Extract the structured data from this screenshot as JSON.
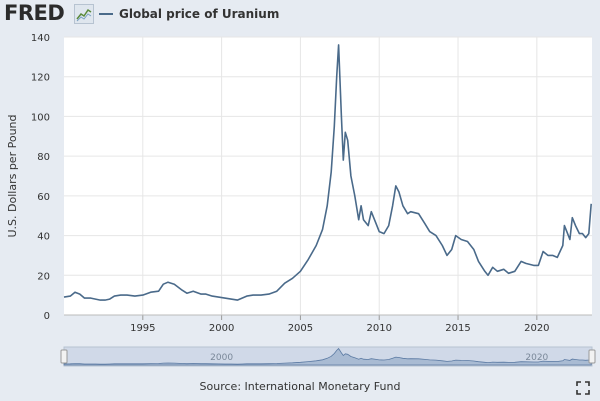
{
  "header": {
    "logo_text": "FRED",
    "logo_icon": "line-chart-icon"
  },
  "footer": {
    "source_text": "Source: International Monetary Fund",
    "fullscreen_icon": "expand-icon"
  },
  "colors": {
    "line": "#4a6a8a",
    "plot_bg": "#ffffff",
    "page_bg": "#e6ebf2",
    "grid": "#e6e6e6",
    "navigator_fill": "#d0d9e8"
  },
  "chart_data": {
    "type": "line",
    "title": "",
    "xlabel": "",
    "ylabel": "U.S. Dollars per Pound",
    "ylim": [
      0,
      140
    ],
    "yticks": [
      0,
      20,
      40,
      60,
      80,
      100,
      120,
      140
    ],
    "xlim": [
      1990,
      2023.5
    ],
    "xticks": [
      1995,
      2000,
      2005,
      2010,
      2015,
      2020
    ],
    "grid": true,
    "legend": "top-left",
    "navigator_ticks": [
      "2000",
      "2020"
    ],
    "series": [
      {
        "name": "Global price of Uranium",
        "points": [
          [
            1990.0,
            9.0
          ],
          [
            1990.4,
            9.5
          ],
          [
            1990.7,
            11.5
          ],
          [
            1991.0,
            10.5
          ],
          [
            1991.3,
            8.5
          ],
          [
            1991.7,
            8.5
          ],
          [
            1992.0,
            8.0
          ],
          [
            1992.3,
            7.5
          ],
          [
            1992.6,
            7.5
          ],
          [
            1992.9,
            8.0
          ],
          [
            1993.2,
            9.5
          ],
          [
            1993.6,
            10.0
          ],
          [
            1994.0,
            10.0
          ],
          [
            1994.5,
            9.5
          ],
          [
            1995.0,
            10.0
          ],
          [
            1995.5,
            11.5
          ],
          [
            1996.0,
            12.0
          ],
          [
            1996.3,
            15.5
          ],
          [
            1996.6,
            16.5
          ],
          [
            1997.0,
            15.5
          ],
          [
            1997.5,
            12.5
          ],
          [
            1997.8,
            11.0
          ],
          [
            1998.2,
            12.0
          ],
          [
            1998.7,
            10.5
          ],
          [
            1999.0,
            10.5
          ],
          [
            1999.4,
            9.5
          ],
          [
            1999.8,
            9.0
          ],
          [
            2000.2,
            8.5
          ],
          [
            2000.6,
            8.0
          ],
          [
            2001.0,
            7.5
          ],
          [
            2001.3,
            8.5
          ],
          [
            2001.6,
            9.5
          ],
          [
            2002.0,
            10.0
          ],
          [
            2002.5,
            10.0
          ],
          [
            2003.0,
            10.5
          ],
          [
            2003.5,
            12.0
          ],
          [
            2004.0,
            16.0
          ],
          [
            2004.5,
            18.5
          ],
          [
            2005.0,
            22.0
          ],
          [
            2005.5,
            28.0
          ],
          [
            2006.0,
            35.0
          ],
          [
            2006.4,
            43.0
          ],
          [
            2006.7,
            55.0
          ],
          [
            2006.95,
            72.0
          ],
          [
            2007.15,
            95.0
          ],
          [
            2007.3,
            120.0
          ],
          [
            2007.42,
            136.0
          ],
          [
            2007.6,
            100.0
          ],
          [
            2007.72,
            78.0
          ],
          [
            2007.85,
            92.0
          ],
          [
            2008.0,
            88.0
          ],
          [
            2008.2,
            70.0
          ],
          [
            2008.45,
            60.0
          ],
          [
            2008.7,
            48.0
          ],
          [
            2008.85,
            55.0
          ],
          [
            2009.0,
            48.0
          ],
          [
            2009.3,
            45.0
          ],
          [
            2009.5,
            52.0
          ],
          [
            2009.8,
            46.0
          ],
          [
            2010.0,
            42.0
          ],
          [
            2010.3,
            41.0
          ],
          [
            2010.6,
            45.0
          ],
          [
            2010.85,
            55.0
          ],
          [
            2011.05,
            65.0
          ],
          [
            2011.25,
            62.0
          ],
          [
            2011.5,
            55.0
          ],
          [
            2011.8,
            51.0
          ],
          [
            2012.0,
            52.0
          ],
          [
            2012.5,
            51.0
          ],
          [
            2012.9,
            46.0
          ],
          [
            2013.2,
            42.0
          ],
          [
            2013.6,
            40.0
          ],
          [
            2014.0,
            35.0
          ],
          [
            2014.3,
            30.0
          ],
          [
            2014.6,
            33.0
          ],
          [
            2014.85,
            40.0
          ],
          [
            2015.2,
            38.0
          ],
          [
            2015.6,
            37.0
          ],
          [
            2016.0,
            33.0
          ],
          [
            2016.3,
            27.0
          ],
          [
            2016.7,
            22.0
          ],
          [
            2016.9,
            20.0
          ],
          [
            2017.2,
            24.0
          ],
          [
            2017.5,
            22.0
          ],
          [
            2017.9,
            23.0
          ],
          [
            2018.2,
            21.0
          ],
          [
            2018.6,
            22.0
          ],
          [
            2019.0,
            27.0
          ],
          [
            2019.3,
            26.0
          ],
          [
            2019.8,
            25.0
          ],
          [
            2020.1,
            25.0
          ],
          [
            2020.4,
            32.0
          ],
          [
            2020.7,
            30.0
          ],
          [
            2021.0,
            30.0
          ],
          [
            2021.3,
            29.0
          ],
          [
            2021.65,
            35.0
          ],
          [
            2021.75,
            45.0
          ],
          [
            2021.9,
            42.0
          ],
          [
            2022.1,
            38.0
          ],
          [
            2022.25,
            49.0
          ],
          [
            2022.45,
            45.0
          ],
          [
            2022.7,
            41.0
          ],
          [
            2022.9,
            41.0
          ],
          [
            2023.1,
            39.0
          ],
          [
            2023.3,
            41.0
          ],
          [
            2023.45,
            56.0
          ]
        ]
      }
    ]
  }
}
